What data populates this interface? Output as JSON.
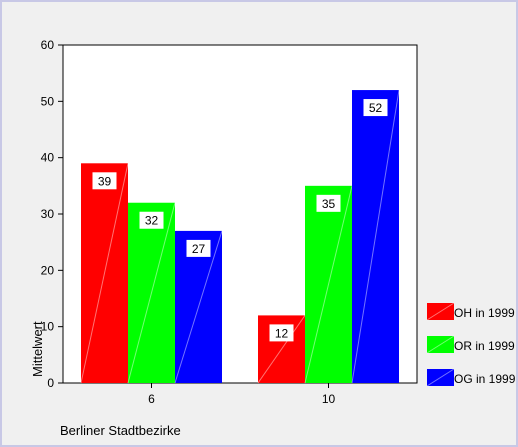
{
  "chart_data": {
    "type": "bar",
    "categories": [
      "6",
      "10"
    ],
    "series": [
      {
        "name": "OH in 1999",
        "color": "#ff0000",
        "values": [
          39,
          12
        ]
      },
      {
        "name": "OR in 1999",
        "color": "#00ff00",
        "values": [
          32,
          35
        ]
      },
      {
        "name": "OG in 1999",
        "color": "#0000ff",
        "values": [
          27,
          52
        ]
      }
    ],
    "title": "",
    "xlabel": "Berliner Stadtbezirke",
    "ylabel": "Mittelwert",
    "ylim": [
      0,
      60
    ],
    "yticks": [
      "0",
      "10",
      "20",
      "30",
      "40",
      "50",
      "60"
    ],
    "data_labels": [
      [
        "39",
        "12"
      ],
      [
        "32",
        "35"
      ],
      [
        "27",
        "52"
      ]
    ],
    "grid": false,
    "legend_position": "bottom-right"
  }
}
